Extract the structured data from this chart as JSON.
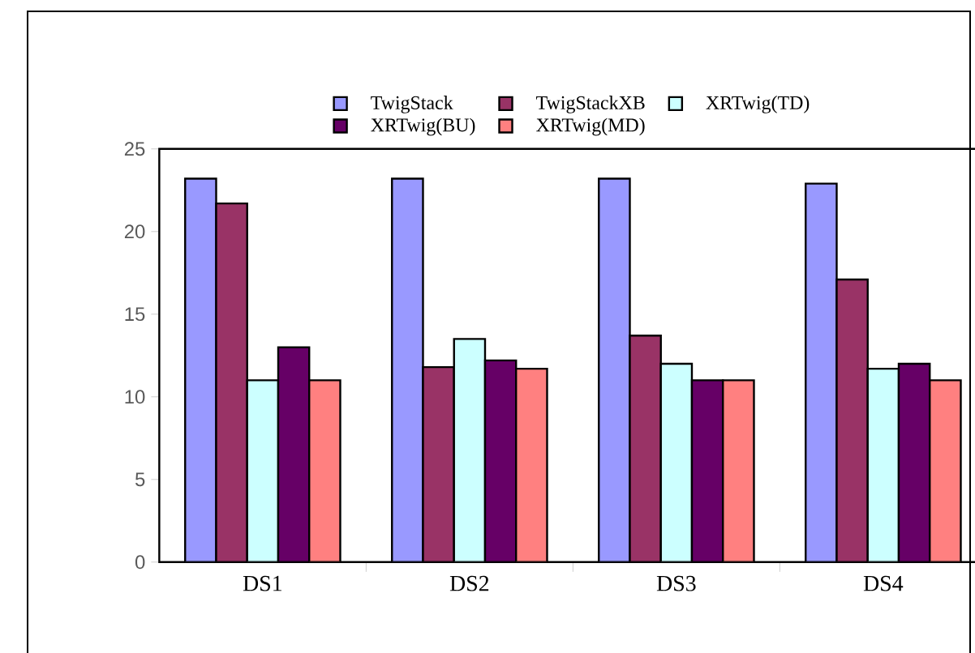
{
  "chart_data": {
    "type": "bar",
    "categories": [
      "DS1",
      "DS2",
      "DS3",
      "DS4"
    ],
    "series": [
      {
        "name": "TwigStack",
        "color": "#9999ff",
        "values": [
          23.2,
          23.2,
          23.2,
          22.9
        ]
      },
      {
        "name": "TwigStackXB",
        "color": "#993366",
        "values": [
          21.7,
          11.8,
          13.7,
          17.1
        ]
      },
      {
        "name": "XRTwig(TD)",
        "color": "#ccffff",
        "values": [
          11.0,
          13.5,
          12.0,
          11.7
        ]
      },
      {
        "name": "XRTwig(BU)",
        "color": "#660066",
        "values": [
          13.0,
          12.2,
          11.0,
          12.0
        ]
      },
      {
        "name": "XRTwig(MD)",
        "color": "#ff8080",
        "values": [
          11.0,
          11.7,
          11.0,
          11.0
        ]
      }
    ],
    "ylim": [
      0,
      25
    ],
    "yticks": [
      0,
      5,
      10,
      15,
      20,
      25
    ],
    "legend": "top",
    "grid": false
  }
}
